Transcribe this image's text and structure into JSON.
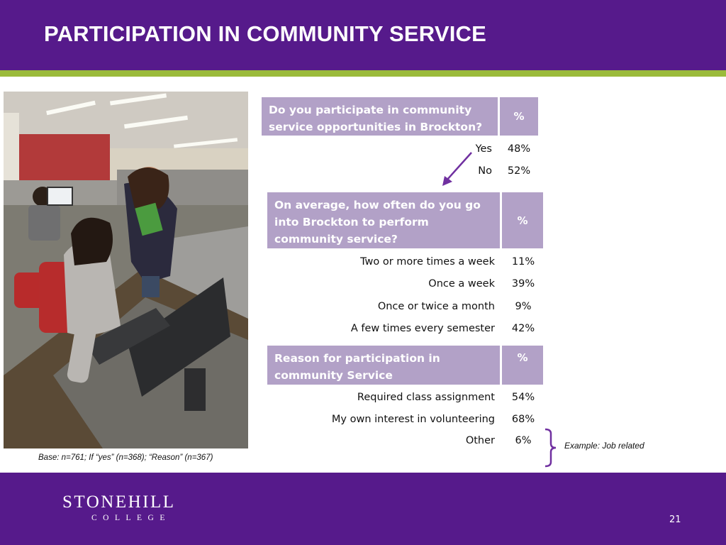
{
  "slide": {
    "title": "PARTICIPATION IN COMMUNITY SERVICE",
    "base_note": "Base: n=761; If “yes” (n=368); “Reason” (n=367)",
    "page_number": "21",
    "colors": {
      "brand_purple": "#561a8b",
      "accent_green": "#9bbb3b",
      "table_header": "#b2a1c7",
      "arrow": "#7030a0"
    }
  },
  "logo": {
    "name": "STONEHILL",
    "sub": "COLLEGE"
  },
  "tables": [
    {
      "question": "Do you participate in community service opportunities in Brockton?",
      "pct_header": "%",
      "rows": [
        {
          "label": "Yes",
          "value": "48%"
        },
        {
          "label": "No",
          "value": "52%"
        }
      ]
    },
    {
      "question": "On average, how often do you go into Brockton to perform community service?",
      "pct_header": "%",
      "rows": [
        {
          "label": "Two or more times a week",
          "value": "11%"
        },
        {
          "label": "Once a week",
          "value": "39%"
        },
        {
          "label": "Once or twice a month",
          "value": "9%"
        },
        {
          "label": "A few times every semester",
          "value": "42%"
        }
      ]
    },
    {
      "question": "Reason for participation in community Service",
      "pct_header": "%",
      "rows": [
        {
          "label": "Required class assignment",
          "value": "54%"
        },
        {
          "label": "My own interest in volunteering",
          "value": "68%"
        },
        {
          "label": "Other",
          "value": "6%"
        }
      ]
    }
  ],
  "annotation": {
    "example": "Example: Job related"
  }
}
